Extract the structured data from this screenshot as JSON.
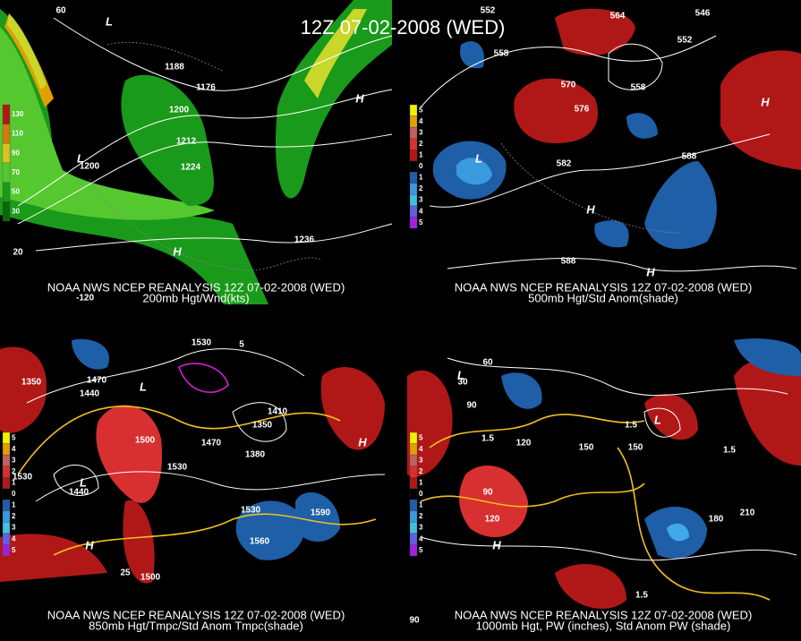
{
  "title": "12Z 07-02-2008 (WED)",
  "panels": [
    {
      "caption": "NOAA NWS NCEP REANALYSIS 12Z 07-02-2008 (WED)",
      "subtitle": "200mb Hgt/Wnd(kts)",
      "colorbar": [
        "130",
        "110",
        "90",
        "70",
        "50",
        "30"
      ],
      "labels": [
        "1188",
        "1176",
        "1200",
        "1212",
        "1224",
        "1200",
        "1236",
        "H",
        "H",
        "L",
        "L",
        "60",
        "20",
        "-120"
      ]
    },
    {
      "caption": "NOAA NWS NCEP REANALYSIS 12Z 07-02-2008 (WED)",
      "subtitle": "500mb Hgt/Std Anom(shade)",
      "colorbar": [
        "5",
        "4",
        "3",
        "2",
        "1",
        "0",
        "1",
        "2",
        "3",
        "4",
        "5"
      ],
      "labels": [
        "552",
        "564",
        "546",
        "558",
        "552",
        "570",
        "576",
        "558",
        "582",
        "588",
        "588",
        "L",
        "H",
        "H",
        "H"
      ]
    },
    {
      "caption": "NOAA NWS NCEP REANALYSIS 12Z 07-02-2008 (WED)",
      "subtitle": "850mb Hgt/Tmpc/Std Anom Tmpc(shade)",
      "colorbar": [
        "5",
        "4",
        "3",
        "2",
        "1",
        "0",
        "1",
        "2",
        "3",
        "4",
        "5"
      ],
      "labels": [
        "1530",
        "1350",
        "1470",
        "1440",
        "1500",
        "1530",
        "1470",
        "1380",
        "1350",
        "1410",
        "1530",
        "1440",
        "1530",
        "1590",
        "1560",
        "1500",
        "H",
        "H",
        "L",
        "L",
        "25",
        "5"
      ]
    },
    {
      "caption": "NOAA NWS NCEP REANALYSIS 12Z 07-02-2008 (WED)",
      "subtitle": "1000mb Hgt, PW (inches), Std Anom PW (shade)",
      "colorbar": [
        "5",
        "4",
        "3",
        "2",
        "1",
        "0",
        "1",
        "2",
        "3",
        "4",
        "5"
      ],
      "labels": [
        "60",
        "30",
        "90",
        "120",
        "150",
        "150",
        "90",
        "120",
        "180",
        "210",
        "1.5",
        "1.5",
        "1.5",
        "1.5",
        "90",
        "L",
        "L",
        "H"
      ]
    }
  ]
}
